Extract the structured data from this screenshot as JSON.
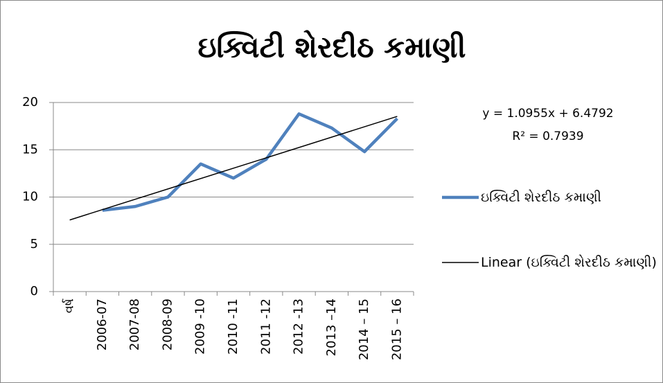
{
  "chart_data": {
    "type": "line",
    "title": "ઇક્વિટી શેરદીઠ કમાણી",
    "categories": [
      "વર્ષ",
      "2006-07",
      "2007-08",
      "2008-09",
      "2009 -10",
      "2010 -11",
      "2011 -12",
      "2012 -13",
      "2013 –14",
      "2014 – 15",
      "2015 – 16"
    ],
    "series": [
      {
        "name": "ઇક્વિટી શેરદીઠ કમાણી",
        "color": "#4f81bd",
        "values": [
          null,
          8.6,
          9.0,
          10.0,
          13.5,
          12.0,
          14.0,
          18.8,
          17.3,
          14.8,
          18.3
        ]
      }
    ],
    "trendline": {
      "name": "Linear (ઇક્વિટી શેરદીઠ કમાણી)",
      "color": "#000000",
      "slope": 1.0955,
      "intercept": 6.4792,
      "equation": "y = 1.0955x + 6.4792",
      "r2": "R² = 0.7939"
    },
    "ylim": [
      0,
      20
    ],
    "yticks": [
      0,
      5,
      10,
      15,
      20
    ],
    "grid": true,
    "legend": "right"
  }
}
